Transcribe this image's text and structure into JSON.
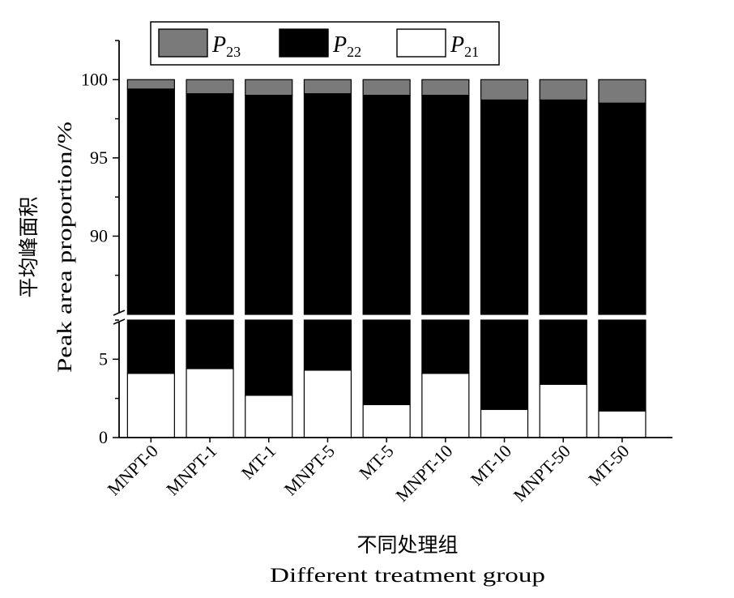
{
  "chart_data": {
    "type": "bar",
    "stacked": true,
    "broken_y_axis": true,
    "categories": [
      "MNPT-0",
      "MNPT-1",
      "MT-1",
      "MNPT-5",
      "MT-5",
      "MNPT-10",
      "MT-10",
      "MNPT-50",
      "MT-50"
    ],
    "series": [
      {
        "name": "P21",
        "label_main": "P",
        "label_sub": "21",
        "color": "#ffffff",
        "values": [
          4.1,
          4.4,
          2.7,
          4.3,
          2.1,
          4.1,
          1.8,
          3.4,
          1.7
        ]
      },
      {
        "name": "P22",
        "label_main": "P",
        "label_sub": "22",
        "color": "#000000",
        "values": [
          95.3,
          94.7,
          96.3,
          94.8,
          96.9,
          94.9,
          96.9,
          95.3,
          96.8
        ]
      },
      {
        "name": "P23",
        "label_main": "P",
        "label_sub": "23",
        "color": "#7a7a7a",
        "values": [
          0.6,
          0.9,
          1.0,
          0.9,
          1.0,
          1.0,
          1.3,
          1.3,
          1.5
        ]
      }
    ],
    "legend_order": [
      "P23",
      "P22",
      "P21"
    ],
    "legend_position": "top",
    "ylim_lower": [
      0,
      7.5
    ],
    "ylim_upper": [
      85,
      102.5
    ],
    "yticks_lower": [
      0,
      5
    ],
    "yticks_upper": [
      90,
      95,
      100
    ],
    "ylabel_cn": "平均峰面积",
    "ylabel_en": "Peak area proportion/%",
    "xlabel_cn": "不同处理组",
    "xlabel_en": "Different treatment group",
    "grid": false
  }
}
